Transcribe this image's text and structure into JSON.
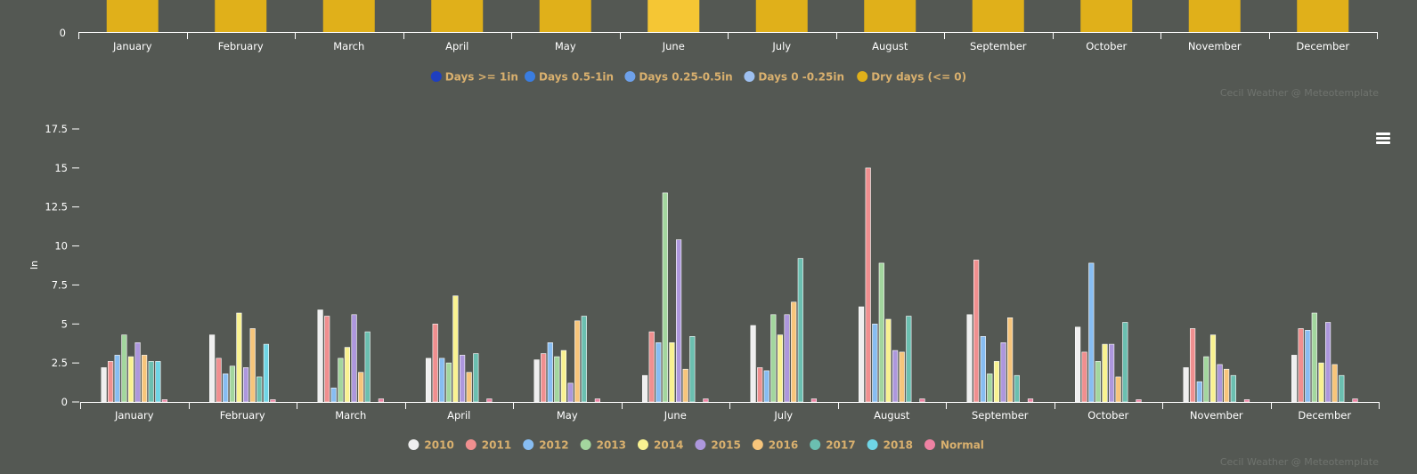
{
  "chart_data": [
    {
      "type": "bar",
      "categories": [
        "January",
        "February",
        "March",
        "April",
        "May",
        "June",
        "July",
        "August",
        "September",
        "October",
        "November",
        "December"
      ],
      "y_ticks": [
        "0"
      ],
      "series_visible": "Dry days (<= 0)",
      "highlighted_category": "June",
      "legend": [
        {
          "name": "Days >= 1in",
          "color": "#1f3fbf"
        },
        {
          "name": "Days 0.5-1in",
          "color": "#3a7de0"
        },
        {
          "name": "Days 0.25-0.5in",
          "color": "#6ea1ea"
        },
        {
          "name": "Days 0 -0.25in",
          "color": "#9ec0f0"
        },
        {
          "name": "Dry days (<= 0)",
          "color": "#e0b01a"
        }
      ],
      "bar_color": "#e0b01a",
      "highlight_color": "#f5c634",
      "credit": "Cecil Weather @ Meteotemplate"
    },
    {
      "type": "bar",
      "categories": [
        "January",
        "February",
        "March",
        "April",
        "May",
        "June",
        "July",
        "August",
        "September",
        "October",
        "November",
        "December"
      ],
      "ylabel": "In",
      "ylim": [
        0,
        17.5
      ],
      "y_ticks": [
        "0",
        "2.5",
        "5",
        "7.5",
        "10",
        "12.5",
        "15",
        "17.5"
      ],
      "series": [
        {
          "name": "2010",
          "color": "#efefef",
          "values": [
            2.2,
            4.3,
            5.9,
            2.8,
            2.7,
            1.7,
            4.9,
            6.1,
            5.6,
            4.8,
            2.2,
            3.0
          ]
        },
        {
          "name": "2011",
          "color": "#f08f8f",
          "values": [
            2.6,
            2.8,
            5.5,
            5.0,
            3.1,
            4.5,
            2.2,
            15.0,
            9.1,
            3.2,
            4.7,
            4.7
          ]
        },
        {
          "name": "2012",
          "color": "#87bdf2",
          "values": [
            3.0,
            1.8,
            0.9,
            2.8,
            3.8,
            3.8,
            2.0,
            5.0,
            4.2,
            8.9,
            1.3,
            4.6
          ]
        },
        {
          "name": "2013",
          "color": "#a3d69e",
          "values": [
            4.3,
            2.3,
            2.8,
            2.5,
            2.9,
            13.4,
            5.6,
            8.9,
            1.8,
            2.6,
            2.9,
            5.7
          ]
        },
        {
          "name": "2014",
          "color": "#f9f291",
          "values": [
            2.9,
            5.7,
            3.5,
            6.8,
            3.3,
            3.8,
            4.3,
            5.3,
            2.6,
            3.7,
            4.3,
            2.5
          ]
        },
        {
          "name": "2015",
          "color": "#ad97dd",
          "values": [
            3.8,
            2.2,
            5.6,
            3.0,
            1.2,
            10.4,
            5.6,
            3.3,
            3.8,
            3.7,
            2.4,
            5.1
          ]
        },
        {
          "name": "2016",
          "color": "#f7c57b",
          "values": [
            3.0,
            4.7,
            1.9,
            1.9,
            5.2,
            2.1,
            6.4,
            3.2,
            5.4,
            1.6,
            2.1,
            2.4
          ]
        },
        {
          "name": "2017",
          "color": "#6bbfb0",
          "values": [
            2.6,
            1.6,
            4.5,
            3.1,
            5.5,
            4.2,
            9.2,
            5.5,
            1.7,
            5.1,
            1.7,
            1.7
          ]
        },
        {
          "name": "2018",
          "color": "#6fd5e6",
          "values": [
            2.6,
            3.7,
            null,
            null,
            null,
            null,
            null,
            null,
            null,
            null,
            null,
            null
          ]
        },
        {
          "name": "Normal",
          "color": "#ee82a3",
          "values": [
            0.15,
            0.15,
            0.2,
            0.2,
            0.2,
            0.2,
            0.2,
            0.2,
            0.2,
            0.15,
            0.15,
            0.2
          ]
        }
      ],
      "credit": "Cecil Weather @ Meteotemplate"
    }
  ]
}
